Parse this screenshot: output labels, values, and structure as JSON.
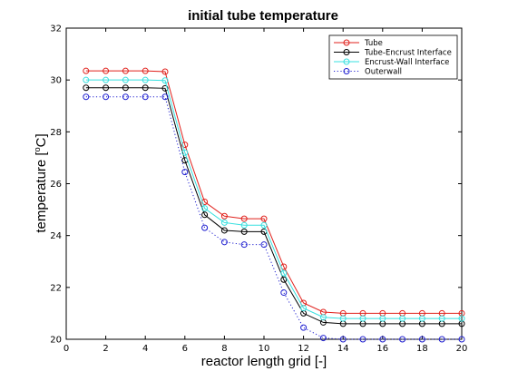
{
  "chart_data": {
    "type": "line",
    "title": "initial tube temperature",
    "xlabel": "reactor length grid [-]",
    "ylabel_main": "temperature [",
    "ylabel_sup": "o",
    "ylabel_tail": "C]",
    "xlim": [
      0,
      20
    ],
    "ylim": [
      20,
      32
    ],
    "xticks": [
      0,
      2,
      4,
      6,
      8,
      10,
      12,
      14,
      16,
      18,
      20
    ],
    "yticks": [
      20,
      22,
      24,
      26,
      28,
      30,
      32
    ],
    "grid": false,
    "legend_position": "top-right",
    "x": [
      1,
      2,
      3,
      4,
      5,
      6,
      7,
      8,
      9,
      10,
      11,
      12,
      13,
      14,
      15,
      16,
      17,
      18,
      19,
      20
    ],
    "series": [
      {
        "name": "Tube",
        "color": "#e0201b",
        "dash": "solid",
        "values": [
          30.35,
          30.35,
          30.35,
          30.35,
          30.32,
          27.5,
          25.3,
          24.75,
          24.65,
          24.65,
          22.8,
          21.4,
          21.05,
          21.0,
          21.0,
          21.0,
          21.0,
          21.0,
          21.0,
          21.0
        ]
      },
      {
        "name": "Tube-Encrust Interface",
        "color": "#000000",
        "dash": "solid",
        "values": [
          29.7,
          29.7,
          29.7,
          29.7,
          29.68,
          26.9,
          24.8,
          24.2,
          24.15,
          24.15,
          22.3,
          21.0,
          20.65,
          20.6,
          20.6,
          20.6,
          20.6,
          20.6,
          20.6,
          20.6
        ]
      },
      {
        "name": "Encrust-Wall Interface",
        "color": "#38e0e0",
        "dash": "solid",
        "values": [
          30.0,
          30.0,
          30.0,
          30.0,
          29.98,
          27.2,
          25.05,
          24.5,
          24.4,
          24.4,
          22.55,
          21.2,
          20.85,
          20.8,
          20.8,
          20.8,
          20.8,
          20.8,
          20.8,
          20.8
        ]
      },
      {
        "name": "Outerwall",
        "color": "#2020d0",
        "dash": "dotted",
        "values": [
          29.35,
          29.35,
          29.35,
          29.35,
          29.35,
          26.45,
          24.3,
          23.75,
          23.65,
          23.65,
          21.8,
          20.45,
          20.05,
          20.0,
          20.0,
          20.0,
          20.0,
          20.0,
          20.0,
          20.0
        ]
      }
    ]
  }
}
